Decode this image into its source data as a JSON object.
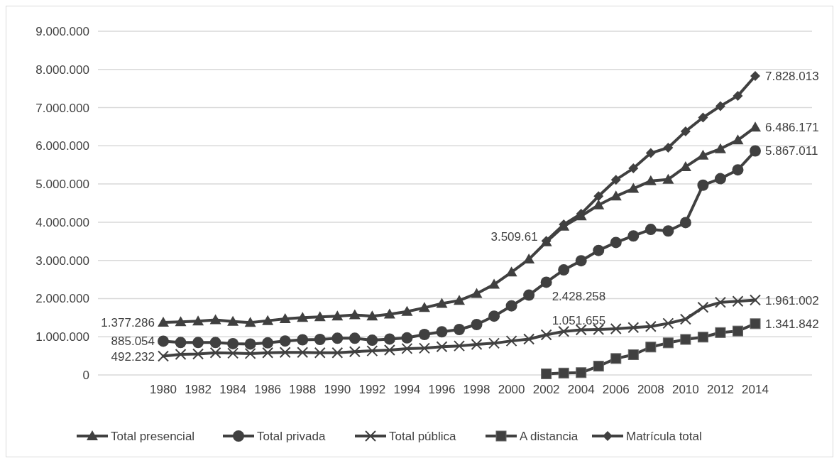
{
  "chart_data": {
    "type": "line",
    "categories": [
      "1980",
      null,
      "1982",
      null,
      "1984",
      null,
      "1986",
      null,
      "1988",
      null,
      "1990",
      null,
      "1992",
      null,
      "1994",
      null,
      "1996",
      null,
      "1998",
      null,
      "2000",
      null,
      "2002",
      null,
      "2004",
      null,
      "2006",
      null,
      "2008",
      null,
      "2010",
      null,
      "2012",
      null,
      "2014"
    ],
    "ylim": [
      0,
      9000000
    ],
    "yticks": [
      {
        "value": 0,
        "label": "0"
      },
      {
        "value": 1000000,
        "label": "1.000.000"
      },
      {
        "value": 2000000,
        "label": "2.000.000"
      },
      {
        "value": 3000000,
        "label": "3.000.000"
      },
      {
        "value": 4000000,
        "label": "4.000.000"
      },
      {
        "value": 5000000,
        "label": "5.000.000"
      },
      {
        "value": 6000000,
        "label": "6.000.000"
      },
      {
        "value": 7000000,
        "label": "7.000.000"
      },
      {
        "value": 8000000,
        "label": "8.000.000"
      },
      {
        "value": 9000000,
        "label": "9.000.000"
      }
    ],
    "grid": "y",
    "legend": "bottom",
    "line_style": "solid",
    "series": [
      {
        "name": "Total presencial",
        "color": "#404040",
        "marker": "triangle",
        "values": [
          1377286,
          1390000,
          1410000,
          1440000,
          1400000,
          1370000,
          1420000,
          1470000,
          1500000,
          1520000,
          1540000,
          1570000,
          1540000,
          1590000,
          1660000,
          1760000,
          1870000,
          1950000,
          2130000,
          2370000,
          2690000,
          3030000,
          3479913,
          3890000,
          4160000,
          4450000,
          4680000,
          4880000,
          5080000,
          5120000,
          5450000,
          5750000,
          5920000,
          6150000,
          6486171
        ],
        "value_labels": [
          "1.377.286",
          null,
          null,
          null,
          null,
          null,
          null,
          null,
          null,
          null,
          null,
          null,
          null,
          null,
          null,
          null,
          null,
          null,
          null,
          null,
          null,
          null,
          null,
          null,
          null,
          null,
          null,
          null,
          null,
          null,
          null,
          null,
          null,
          null,
          "6.486.171"
        ]
      },
      {
        "name": "Total privada",
        "color": "#404040",
        "marker": "circle",
        "values": [
          885054,
          850000,
          850000,
          850000,
          820000,
          810000,
          840000,
          890000,
          920000,
          930000,
          960000,
          960000,
          910000,
          940000,
          970000,
          1060000,
          1130000,
          1190000,
          1320000,
          1540000,
          1810000,
          2090000,
          2428258,
          2750000,
          2990000,
          3260000,
          3470000,
          3640000,
          3810000,
          3770000,
          3990000,
          4970000,
          5140000,
          5370000,
          5867011
        ],
        "value_labels": [
          "885.054",
          null,
          null,
          null,
          null,
          null,
          null,
          null,
          null,
          null,
          null,
          null,
          null,
          null,
          null,
          null,
          null,
          null,
          null,
          null,
          null,
          null,
          "2.428.258",
          null,
          null,
          null,
          null,
          null,
          null,
          null,
          null,
          null,
          null,
          null,
          "5.867.011"
        ]
      },
      {
        "name": "Total pública",
        "color": "#404040",
        "marker": "cross",
        "values": [
          492232,
          540000,
          550000,
          580000,
          570000,
          560000,
          580000,
          590000,
          590000,
          580000,
          580000,
          610000,
          630000,
          650000,
          690000,
          700000,
          740000,
          760000,
          800000,
          830000,
          890000,
          940000,
          1051655,
          1140000,
          1180000,
          1190000,
          1210000,
          1240000,
          1270000,
          1350000,
          1460000,
          1770000,
          1900000,
          1930000,
          1961002
        ],
        "value_labels": [
          "492.232",
          null,
          null,
          null,
          null,
          null,
          null,
          null,
          null,
          null,
          null,
          null,
          null,
          null,
          null,
          null,
          null,
          null,
          null,
          null,
          null,
          null,
          "1.051.655",
          null,
          null,
          null,
          null,
          null,
          null,
          null,
          null,
          null,
          null,
          null,
          "1.961.002"
        ]
      },
      {
        "name": "A distancia",
        "color": "#404040",
        "marker": "square",
        "values": [
          null,
          null,
          null,
          null,
          null,
          null,
          null,
          null,
          null,
          null,
          null,
          null,
          null,
          null,
          null,
          null,
          null,
          null,
          null,
          null,
          null,
          null,
          30000,
          50000,
          60000,
          230000,
          430000,
          530000,
          730000,
          840000,
          930000,
          990000,
          1110000,
          1150000,
          1341842
        ],
        "value_labels": [
          null,
          null,
          null,
          null,
          null,
          null,
          null,
          null,
          null,
          null,
          null,
          null,
          null,
          null,
          null,
          null,
          null,
          null,
          null,
          null,
          null,
          null,
          null,
          null,
          null,
          null,
          null,
          null,
          null,
          null,
          null,
          null,
          null,
          null,
          "1.341.842"
        ]
      },
      {
        "name": "Matrícula total",
        "color": "#404040",
        "marker": "diamond",
        "values": [
          null,
          null,
          null,
          null,
          null,
          null,
          null,
          null,
          null,
          null,
          null,
          null,
          null,
          null,
          null,
          null,
          null,
          null,
          null,
          null,
          null,
          null,
          3509610,
          3940000,
          4220000,
          4680000,
          5110000,
          5410000,
          5810000,
          5950000,
          6380000,
          6740000,
          7040000,
          7310000,
          7828013
        ],
        "value_labels": [
          null,
          null,
          null,
          null,
          null,
          null,
          null,
          null,
          null,
          null,
          null,
          null,
          null,
          null,
          null,
          null,
          null,
          null,
          null,
          null,
          null,
          null,
          "3.509.61",
          null,
          null,
          null,
          null,
          null,
          null,
          null,
          null,
          null,
          null,
          null,
          "7.828.013"
        ]
      }
    ]
  }
}
